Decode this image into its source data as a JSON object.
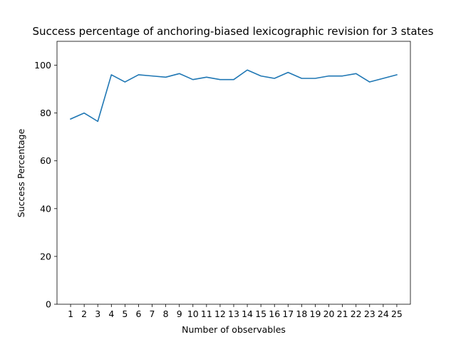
{
  "chart_data": {
    "type": "line",
    "title": "Success percentage of anchoring-biased lexicographic revision for 3 states",
    "xlabel": "Number of observables",
    "ylabel": "Success Percentage",
    "x": [
      1,
      2,
      3,
      4,
      5,
      6,
      7,
      8,
      9,
      10,
      11,
      12,
      13,
      14,
      15,
      16,
      17,
      18,
      19,
      20,
      21,
      22,
      23,
      24,
      25
    ],
    "series": [
      {
        "values": [
          77.5,
          80,
          76.5,
          96,
          93,
          96,
          95.5,
          95,
          96.5,
          94,
          95,
          94,
          94,
          98,
          95.5,
          94.5,
          97,
          94.5,
          94.5,
          95.5,
          95.5,
          96.5,
          93,
          94.5,
          96
        ],
        "color": "#1f77b4"
      }
    ],
    "xlim": [
      0,
      26
    ],
    "ylim": [
      0,
      110
    ],
    "yticks": [
      0,
      20,
      40,
      60,
      80,
      100
    ],
    "grid": false,
    "legend": "none"
  }
}
